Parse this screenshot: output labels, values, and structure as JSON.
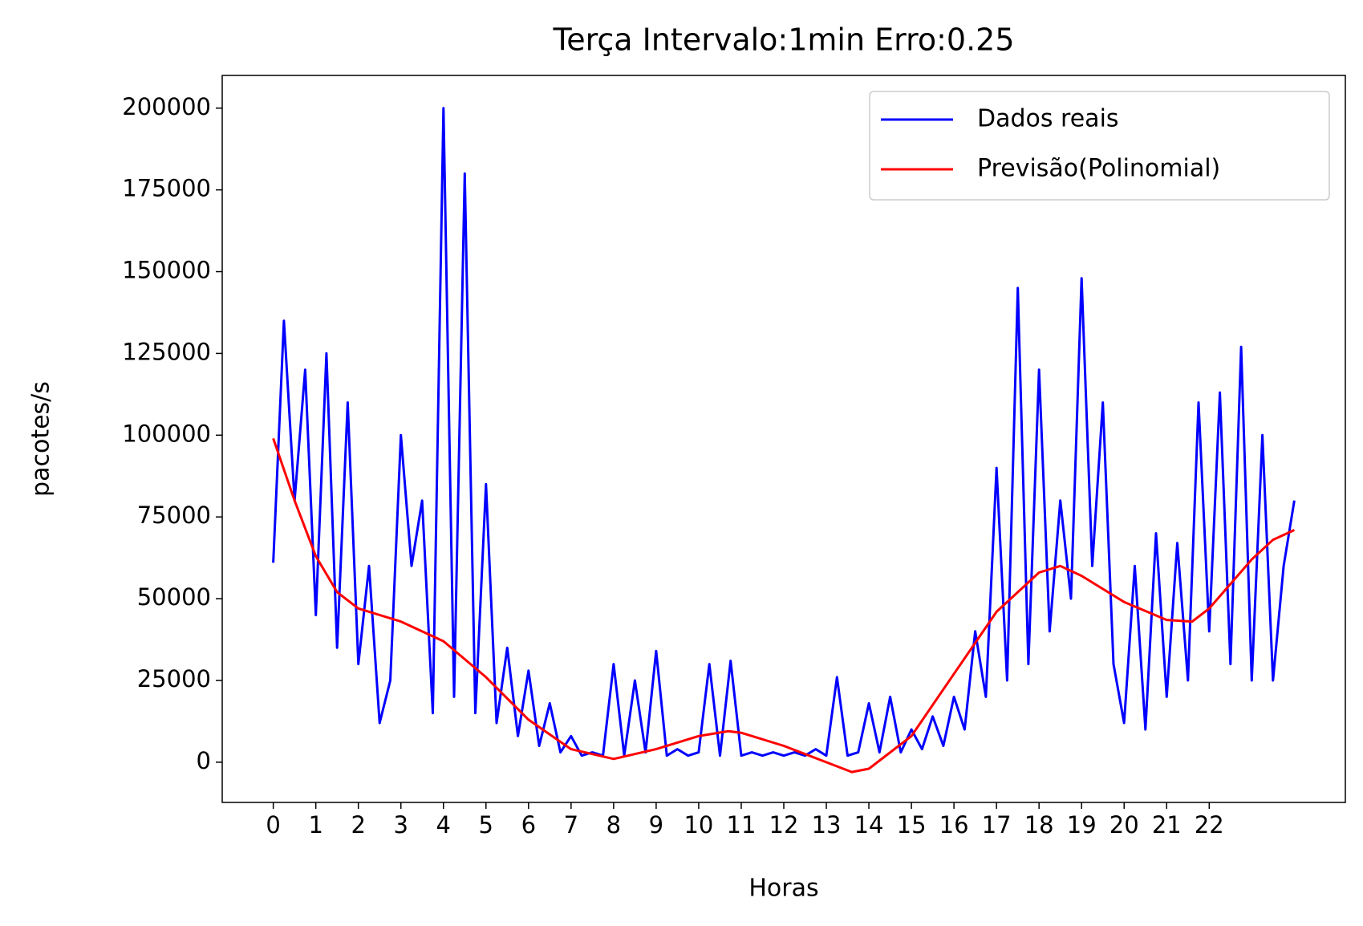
{
  "chart_data": {
    "type": "line",
    "title": "Terça Intervalo:1min Erro:0.25",
    "xlabel": "Horas",
    "ylabel": "pacotes/s",
    "xlim": [
      -1.2,
      25.2
    ],
    "ylim": [
      -12300,
      210000
    ],
    "xticks": [
      0,
      1,
      2,
      3,
      4,
      5,
      6,
      7,
      8,
      9,
      10,
      11,
      12,
      13,
      14,
      15,
      16,
      17,
      18,
      19,
      20,
      21,
      22
    ],
    "yticks": [
      0,
      25000,
      50000,
      75000,
      100000,
      125000,
      150000,
      175000,
      200000
    ],
    "legend": "upper right",
    "series": [
      {
        "name": "Dados reais",
        "color": "#0000ff",
        "x": [
          0,
          0.25,
          0.5,
          0.75,
          1,
          1.25,
          1.5,
          1.75,
          2,
          2.25,
          2.5,
          2.75,
          3,
          3.25,
          3.5,
          3.75,
          4,
          4.25,
          4.5,
          4.75,
          5,
          5.25,
          5.5,
          5.75,
          6,
          6.25,
          6.5,
          6.75,
          7,
          7.25,
          7.5,
          7.75,
          8,
          8.25,
          8.5,
          8.75,
          9,
          9.25,
          9.5,
          9.75,
          10,
          10.25,
          10.5,
          10.75,
          11,
          11.25,
          11.5,
          11.75,
          12,
          12.25,
          12.5,
          12.75,
          13,
          13.25,
          13.5,
          13.75,
          14,
          14.25,
          14.5,
          14.75,
          15,
          15.25,
          15.5,
          15.75,
          16,
          16.25,
          16.5,
          16.75,
          17,
          17.25,
          17.5,
          17.75,
          18,
          18.25,
          18.5,
          18.75,
          19,
          19.25,
          19.5,
          19.75,
          20,
          20.25,
          20.5,
          20.75,
          21,
          21.25,
          21.5,
          21.75,
          22,
          22.25,
          22.5,
          22.75,
          23,
          23.25,
          23.5,
          23.75,
          24
        ],
        "values": [
          61000,
          135000,
          80000,
          120000,
          45000,
          125000,
          35000,
          110000,
          30000,
          60000,
          12000,
          25000,
          100000,
          60000,
          80000,
          15000,
          200000,
          20000,
          180000,
          15000,
          85000,
          12000,
          35000,
          8000,
          28000,
          5000,
          18000,
          3000,
          8000,
          2000,
          3000,
          2000,
          30000,
          2000,
          25000,
          3000,
          34000,
          2000,
          4000,
          2000,
          3000,
          30000,
          2000,
          31000,
          2000,
          3000,
          2000,
          3000,
          2000,
          3000,
          2000,
          4000,
          2000,
          26000,
          2000,
          3000,
          18000,
          3000,
          20000,
          3000,
          10000,
          4000,
          14000,
          5000,
          20000,
          10000,
          40000,
          20000,
          90000,
          25000,
          145000,
          30000,
          120000,
          40000,
          80000,
          50000,
          148000,
          60000,
          110000,
          30000,
          12000,
          60000,
          10000,
          70000,
          20000,
          67000,
          25000,
          110000,
          40000,
          113000,
          30000,
          127000,
          25000,
          100000,
          25000,
          60000,
          80000
        ]
      },
      {
        "name": "Previsão(Polinomial)",
        "color": "#ff0000",
        "x": [
          0,
          0.5,
          1,
          1.5,
          2,
          3,
          4,
          5,
          6,
          7,
          8,
          9,
          10,
          10.7,
          11,
          12,
          13,
          13.6,
          14,
          15,
          16,
          17,
          18,
          18.5,
          19,
          20,
          21,
          21.6,
          22,
          23,
          23.5,
          24
        ],
        "values": [
          99000,
          80000,
          63000,
          52000,
          47000,
          43000,
          37000,
          26000,
          13000,
          4000,
          1000,
          4000,
          8000,
          9500,
          9000,
          5000,
          0,
          -3000,
          -2000,
          8000,
          27000,
          46000,
          58000,
          60000,
          57000,
          49000,
          43500,
          43000,
          47000,
          62000,
          68000,
          71000
        ]
      }
    ]
  }
}
